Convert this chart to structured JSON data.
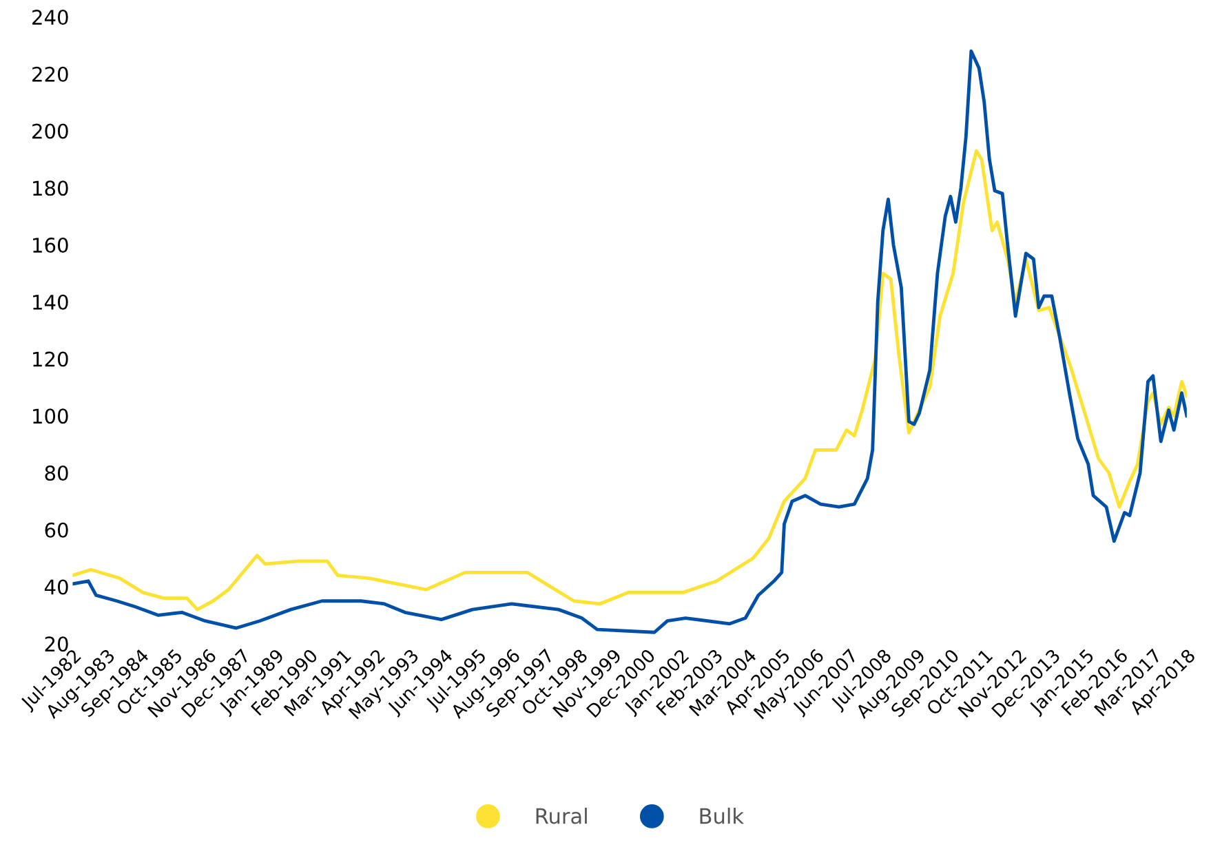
{
  "chart_data": {
    "type": "line",
    "legend": "bottom",
    "grid": false,
    "marker": "none",
    "line_style": "solid",
    "xlim": [
      "1982-07",
      "2018-04"
    ],
    "xticks": [
      {
        "value": "1982-07",
        "label": "Jul-1982"
      },
      {
        "value": "1983-08",
        "label": "Aug-1983"
      },
      {
        "value": "1984-09",
        "label": "Sep-1984"
      },
      {
        "value": "1985-10",
        "label": "Oct-1985"
      },
      {
        "value": "1986-11",
        "label": "Nov-1986"
      },
      {
        "value": "1987-12",
        "label": "Dec-1987"
      },
      {
        "value": "1989-01",
        "label": "Jan-1989"
      },
      {
        "value": "1990-02",
        "label": "Feb-1990"
      },
      {
        "value": "1991-03",
        "label": "Mar-1991"
      },
      {
        "value": "1992-04",
        "label": "Apr-1992"
      },
      {
        "value": "1993-05",
        "label": "May-1993"
      },
      {
        "value": "1994-06",
        "label": "Jun-1994"
      },
      {
        "value": "1995-07",
        "label": "Jul-1995"
      },
      {
        "value": "1996-08",
        "label": "Aug-1996"
      },
      {
        "value": "1997-09",
        "label": "Sep-1997"
      },
      {
        "value": "1998-10",
        "label": "Oct-1998"
      },
      {
        "value": "1999-11",
        "label": "Nov-1999"
      },
      {
        "value": "2000-12",
        "label": "Dec-2000"
      },
      {
        "value": "2002-01",
        "label": "Jan-2002"
      },
      {
        "value": "2003-02",
        "label": "Feb-2003"
      },
      {
        "value": "2004-03",
        "label": "Mar-2004"
      },
      {
        "value": "2005-04",
        "label": "Apr-2005"
      },
      {
        "value": "2006-05",
        "label": "May-2006"
      },
      {
        "value": "2007-06",
        "label": "Jun-2007"
      },
      {
        "value": "2008-07",
        "label": "Jul-2008"
      },
      {
        "value": "2009-08",
        "label": "Aug-2009"
      },
      {
        "value": "2010-09",
        "label": "Sep-2010"
      },
      {
        "value": "2011-10",
        "label": "Oct-2011"
      },
      {
        "value": "2012-11",
        "label": "Nov-2012"
      },
      {
        "value": "2013-12",
        "label": "Dec-2013"
      },
      {
        "value": "2015-01",
        "label": "Jan-2015"
      },
      {
        "value": "2016-02",
        "label": "Feb-2016"
      },
      {
        "value": "2017-03",
        "label": "Mar-2017"
      },
      {
        "value": "2018-04",
        "label": "Apr-2018"
      }
    ],
    "ylim": [
      20,
      240
    ],
    "yticks": [
      20,
      40,
      60,
      80,
      100,
      120,
      140,
      160,
      180,
      200,
      220,
      240
    ],
    "series": [
      {
        "name": "Rural",
        "color": "#fde234",
        "x": [
          "1982-07",
          "1983-02",
          "1984-01",
          "1984-10",
          "1985-06",
          "1986-03",
          "1986-07",
          "1987-01",
          "1987-07",
          "1988-06",
          "1988-09",
          "1989-10",
          "1990-09",
          "1991-01",
          "1992-01",
          "1992-12",
          "1993-11",
          "1995-02",
          "1997-02",
          "1997-11",
          "1998-08",
          "1999-06",
          "2000-05",
          "2001-08",
          "2002-02",
          "2003-03",
          "2004-05",
          "2004-11",
          "2005-05",
          "2006-01",
          "2006-05",
          "2007-01",
          "2007-05",
          "2007-08",
          "2007-11",
          "2008-04",
          "2008-07",
          "2008-10",
          "2009-01",
          "2009-05",
          "2009-08",
          "2010-01",
          "2010-05",
          "2010-10",
          "2011-02",
          "2011-07",
          "2011-09",
          "2012-01",
          "2012-03",
          "2012-07",
          "2012-10",
          "2013-02",
          "2013-07",
          "2013-11",
          "2014-07",
          "2015-01",
          "2015-06",
          "2015-10",
          "2016-02",
          "2016-06",
          "2016-09",
          "2017-01",
          "2017-03",
          "2017-06",
          "2017-09",
          "2017-11",
          "2018-02",
          "2018-04"
        ],
        "values": [
          44,
          46,
          43,
          38,
          36,
          36,
          32,
          35,
          39,
          51,
          48,
          49,
          49,
          44,
          43,
          41,
          39,
          45,
          45,
          40,
          35,
          34,
          38,
          38,
          38,
          42,
          50,
          57,
          70,
          78,
          88,
          88,
          95,
          93,
          102,
          120,
          150,
          148,
          122,
          94,
          100,
          110,
          135,
          150,
          175,
          193,
          190,
          165,
          168,
          155,
          140,
          155,
          137,
          138,
          118,
          100,
          85,
          80,
          68,
          77,
          83,
          105,
          108,
          97,
          103,
          100,
          112,
          107
        ]
      },
      {
        "name": "Bulk",
        "color": "#0050a8",
        "x": [
          "1982-07",
          "1983-01",
          "1983-04",
          "1983-12",
          "1984-07",
          "1985-04",
          "1986-01",
          "1986-10",
          "1987-10",
          "1988-07",
          "1989-07",
          "1990-07",
          "1991-10",
          "1992-07",
          "1993-03",
          "1994-05",
          "1995-05",
          "1996-08",
          "1998-02",
          "1998-11",
          "1999-05",
          "2001-03",
          "2001-08",
          "2002-03",
          "2003-08",
          "2004-02",
          "2004-07",
          "2005-01",
          "2005-04",
          "2005-05",
          "2005-08",
          "2006-01",
          "2006-07",
          "2007-02",
          "2007-08",
          "2008-01",
          "2008-03",
          "2008-05",
          "2008-07",
          "2008-09",
          "2008-11",
          "2009-02",
          "2009-05",
          "2009-07",
          "2009-09",
          "2010-01",
          "2010-04",
          "2010-07",
          "2010-09",
          "2010-11",
          "2011-01",
          "2011-03",
          "2011-05",
          "2011-08",
          "2011-10",
          "2011-12",
          "2012-02",
          "2012-05",
          "2012-07",
          "2012-10",
          "2013-02",
          "2013-05",
          "2013-07",
          "2013-09",
          "2013-12",
          "2014-03",
          "2014-07",
          "2014-10",
          "2015-02",
          "2015-04",
          "2015-09",
          "2015-12",
          "2016-04",
          "2016-06",
          "2016-10",
          "2017-01",
          "2017-03",
          "2017-06",
          "2017-09",
          "2017-11",
          "2018-02",
          "2018-04"
        ],
        "values": [
          41,
          42,
          37,
          35,
          33,
          30,
          31,
          28,
          25.5,
          28,
          32,
          35,
          35,
          34,
          31,
          28.5,
          32,
          34,
          32,
          29,
          25,
          24,
          28,
          29,
          27,
          29,
          37,
          42,
          45,
          62,
          70,
          72,
          69,
          68,
          69,
          78,
          88,
          140,
          165,
          176,
          160,
          145,
          98,
          97,
          101,
          116,
          150,
          170,
          177,
          168,
          180,
          198,
          228,
          222,
          210,
          190,
          179,
          178,
          160,
          135,
          157,
          155,
          138,
          142,
          142,
          128,
          107,
          92,
          83,
          72,
          68,
          56,
          66,
          65,
          80,
          112,
          114,
          91,
          102,
          95,
          108,
          100
        ]
      }
    ]
  }
}
